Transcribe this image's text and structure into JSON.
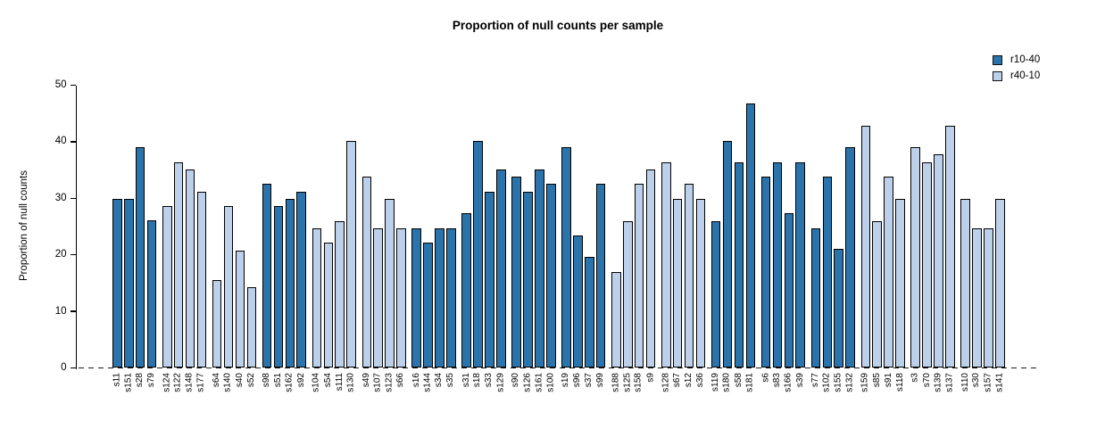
{
  "chart_data": {
    "type": "bar",
    "title": "Proportion of null counts per sample",
    "xlabel": "",
    "ylabel": "Proportion of null counts",
    "ylim": [
      0,
      50
    ],
    "yticks": [
      0,
      10,
      20,
      30,
      40,
      50
    ],
    "grid": false,
    "legend_position": "top-right",
    "baseline_style": "dashed",
    "group_size": 4,
    "series": [
      {
        "name": "r10-40",
        "color": "#2B74AB"
      },
      {
        "name": "r40-10",
        "color": "#BDD0EA"
      }
    ],
    "bars": [
      {
        "sample": "s11",
        "series": "r10-40",
        "value": 29.9
      },
      {
        "sample": "s151",
        "series": "r10-40",
        "value": 29.9
      },
      {
        "sample": "s28",
        "series": "r10-40",
        "value": 39.0
      },
      {
        "sample": "s79",
        "series": "r10-40",
        "value": 26.1
      },
      {
        "sample": "s124",
        "series": "r40-10",
        "value": 28.6
      },
      {
        "sample": "s122",
        "series": "r40-10",
        "value": 36.4
      },
      {
        "sample": "s148",
        "series": "r40-10",
        "value": 35.1
      },
      {
        "sample": "s177",
        "series": "r40-10",
        "value": 31.2
      },
      {
        "sample": "s64",
        "series": "r40-10",
        "value": 15.6
      },
      {
        "sample": "s140",
        "series": "r40-10",
        "value": 28.6
      },
      {
        "sample": "s40",
        "series": "r40-10",
        "value": 20.8
      },
      {
        "sample": "s52",
        "series": "r40-10",
        "value": 14.3
      },
      {
        "sample": "s98",
        "series": "r10-40",
        "value": 32.5
      },
      {
        "sample": "s51",
        "series": "r10-40",
        "value": 28.6
      },
      {
        "sample": "s162",
        "series": "r10-40",
        "value": 29.9
      },
      {
        "sample": "s92",
        "series": "r10-40",
        "value": 31.2
      },
      {
        "sample": "s104",
        "series": "r40-10",
        "value": 24.7
      },
      {
        "sample": "s54",
        "series": "r40-10",
        "value": 22.1
      },
      {
        "sample": "s111",
        "series": "r40-10",
        "value": 26.0
      },
      {
        "sample": "s130",
        "series": "r40-10",
        "value": 40.2
      },
      {
        "sample": "s49",
        "series": "r40-10",
        "value": 33.8
      },
      {
        "sample": "s107",
        "series": "r40-10",
        "value": 24.7
      },
      {
        "sample": "s123",
        "series": "r40-10",
        "value": 29.9
      },
      {
        "sample": "s66",
        "series": "r40-10",
        "value": 24.7
      },
      {
        "sample": "s16",
        "series": "r10-40",
        "value": 24.7
      },
      {
        "sample": "s144",
        "series": "r10-40",
        "value": 22.1
      },
      {
        "sample": "s34",
        "series": "r10-40",
        "value": 24.7
      },
      {
        "sample": "s35",
        "series": "r10-40",
        "value": 24.7
      },
      {
        "sample": "s31",
        "series": "r10-40",
        "value": 27.3
      },
      {
        "sample": "s18",
        "series": "r10-40",
        "value": 40.2
      },
      {
        "sample": "s33",
        "series": "r10-40",
        "value": 31.2
      },
      {
        "sample": "s129",
        "series": "r10-40",
        "value": 35.1
      },
      {
        "sample": "s90",
        "series": "r10-40",
        "value": 33.8
      },
      {
        "sample": "s126",
        "series": "r10-40",
        "value": 31.2
      },
      {
        "sample": "s161",
        "series": "r10-40",
        "value": 35.1
      },
      {
        "sample": "s100",
        "series": "r10-40",
        "value": 32.5
      },
      {
        "sample": "s19",
        "series": "r10-40",
        "value": 39.0
      },
      {
        "sample": "s96",
        "series": "r10-40",
        "value": 23.4
      },
      {
        "sample": "s37",
        "series": "r10-40",
        "value": 19.6
      },
      {
        "sample": "s99",
        "series": "r10-40",
        "value": 32.5
      },
      {
        "sample": "s188",
        "series": "r40-10",
        "value": 16.9
      },
      {
        "sample": "s125",
        "series": "r40-10",
        "value": 26.0
      },
      {
        "sample": "s158",
        "series": "r40-10",
        "value": 32.5
      },
      {
        "sample": "s9",
        "series": "r40-10",
        "value": 35.1
      },
      {
        "sample": "s128",
        "series": "r40-10",
        "value": 36.4
      },
      {
        "sample": "s67",
        "series": "r40-10",
        "value": 29.9
      },
      {
        "sample": "s12",
        "series": "r40-10",
        "value": 32.5
      },
      {
        "sample": "s36",
        "series": "r40-10",
        "value": 29.9
      },
      {
        "sample": "s119",
        "series": "r10-40",
        "value": 26.0
      },
      {
        "sample": "s180",
        "series": "r10-40",
        "value": 40.2
      },
      {
        "sample": "s58",
        "series": "r10-40",
        "value": 36.4
      },
      {
        "sample": "s181",
        "series": "r10-40",
        "value": 46.8
      },
      {
        "sample": "s6",
        "series": "r10-40",
        "value": 33.8
      },
      {
        "sample": "s83",
        "series": "r10-40",
        "value": 36.4
      },
      {
        "sample": "s166",
        "series": "r10-40",
        "value": 27.3
      },
      {
        "sample": "s39",
        "series": "r10-40",
        "value": 36.4
      },
      {
        "sample": "s77",
        "series": "r10-40",
        "value": 24.7
      },
      {
        "sample": "s102",
        "series": "r10-40",
        "value": 33.8
      },
      {
        "sample": "s155",
        "series": "r10-40",
        "value": 21.0
      },
      {
        "sample": "s132",
        "series": "r10-40",
        "value": 39.0
      },
      {
        "sample": "s159",
        "series": "r40-10",
        "value": 42.9
      },
      {
        "sample": "s85",
        "series": "r40-10",
        "value": 26.0
      },
      {
        "sample": "s91",
        "series": "r40-10",
        "value": 33.8
      },
      {
        "sample": "s118",
        "series": "r40-10",
        "value": 29.9
      },
      {
        "sample": "s3",
        "series": "r40-10",
        "value": 39.0
      },
      {
        "sample": "s70",
        "series": "r40-10",
        "value": 36.4
      },
      {
        "sample": "s139",
        "series": "r40-10",
        "value": 37.7
      },
      {
        "sample": "s137",
        "series": "r40-10",
        "value": 42.9
      },
      {
        "sample": "s110",
        "series": "r40-10",
        "value": 29.9
      },
      {
        "sample": "s30",
        "series": "r40-10",
        "value": 24.7
      },
      {
        "sample": "s157",
        "series": "r40-10",
        "value": 24.7
      },
      {
        "sample": "s141",
        "series": "r40-10",
        "value": 29.9
      }
    ]
  }
}
